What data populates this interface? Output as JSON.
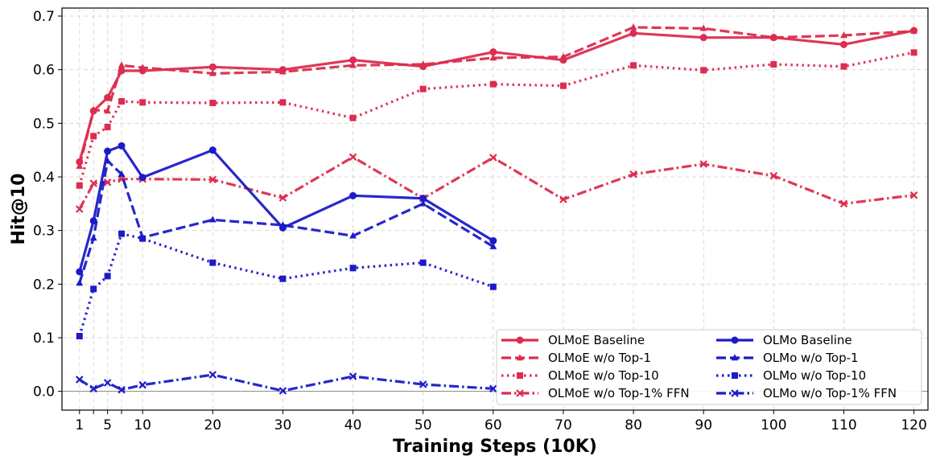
{
  "chart_data": {
    "type": "line",
    "title": "",
    "xlabel": "Training Steps (10K)",
    "ylabel": "Hit@10",
    "xlim": [
      -1.5,
      122
    ],
    "ylim": [
      -0.035,
      0.715
    ],
    "grid": true,
    "legend_position": "lower-right",
    "reference_line": 0.0,
    "xticks": [
      1,
      3,
      5,
      7,
      10,
      20,
      30,
      40,
      50,
      60,
      70,
      80,
      90,
      100,
      110,
      120
    ],
    "xtick_labels": [
      "1",
      "",
      "5",
      "",
      "10",
      "20",
      "30",
      "40",
      "50",
      "60",
      "70",
      "80",
      "90",
      "100",
      "110",
      "120"
    ],
    "yticks": [
      0.0,
      0.1,
      0.2,
      0.3,
      0.4,
      0.5,
      0.6,
      0.7
    ],
    "ytick_labels": [
      "0.0",
      "0.1",
      "0.2",
      "0.3",
      "0.4",
      "0.5",
      "0.6",
      "0.7"
    ],
    "colors": {
      "olmoe": "#dc2c4f",
      "olmo": "#1b1bc8"
    },
    "series": [
      {
        "name": "OLMoE Baseline",
        "color_key": "olmoe",
        "dash": "solid",
        "marker": "circle",
        "x": [
          1,
          3,
          5,
          7,
          10,
          20,
          30,
          40,
          50,
          60,
          70,
          80,
          90,
          100,
          110,
          120
        ],
        "y": [
          0.428,
          0.523,
          0.548,
          0.598,
          0.598,
          0.605,
          0.6,
          0.618,
          0.606,
          0.633,
          0.618,
          0.668,
          0.66,
          0.66,
          0.647,
          0.673
        ]
      },
      {
        "name": "OLMoE w/o Top-1",
        "color_key": "olmoe",
        "dash": "dashed",
        "marker": "triangle",
        "x": [
          1,
          3,
          5,
          7,
          10,
          20,
          30,
          40,
          50,
          60,
          70,
          80,
          90,
          100,
          110,
          120
        ],
        "y": [
          0.42,
          0.525,
          0.523,
          0.608,
          0.604,
          0.593,
          0.596,
          0.608,
          0.61,
          0.622,
          0.624,
          0.679,
          0.677,
          0.66,
          0.664,
          0.672
        ]
      },
      {
        "name": "OLMoE w/o Top-10",
        "color_key": "olmoe",
        "dash": "dotted",
        "marker": "square",
        "x": [
          1,
          3,
          5,
          7,
          10,
          20,
          30,
          40,
          50,
          60,
          70,
          80,
          90,
          100,
          110,
          120
        ],
        "y": [
          0.384,
          0.476,
          0.493,
          0.541,
          0.539,
          0.538,
          0.539,
          0.51,
          0.564,
          0.573,
          0.57,
          0.608,
          0.599,
          0.61,
          0.606,
          0.632
        ]
      },
      {
        "name": "OLMoE w/o Top-1% FFN",
        "color_key": "olmoe",
        "dash": "dashdot",
        "marker": "x",
        "x": [
          1,
          3,
          5,
          7,
          10,
          20,
          30,
          40,
          50,
          60,
          70,
          80,
          90,
          100,
          110,
          120
        ],
        "y": [
          0.34,
          0.388,
          0.39,
          0.396,
          0.396,
          0.395,
          0.361,
          0.437,
          0.36,
          0.436,
          0.358,
          0.405,
          0.424,
          0.402,
          0.35,
          0.366
        ]
      },
      {
        "name": "OLMo Baseline",
        "color_key": "olmo",
        "dash": "solid",
        "marker": "circle",
        "x": [
          1,
          3,
          5,
          7,
          10,
          20,
          30,
          40,
          50,
          60
        ],
        "y": [
          0.223,
          0.318,
          0.448,
          0.458,
          0.399,
          0.45,
          0.305,
          0.365,
          0.36,
          0.281
        ]
      },
      {
        "name": "OLMo w/o Top-1",
        "color_key": "olmo",
        "dash": "dashed",
        "marker": "triangle",
        "x": [
          1,
          3,
          5,
          7,
          10,
          20,
          30,
          40,
          50,
          60
        ],
        "y": [
          0.202,
          0.286,
          0.43,
          0.405,
          0.287,
          0.32,
          0.31,
          0.29,
          0.35,
          0.27
        ]
      },
      {
        "name": "OLMo w/o Top-10",
        "color_key": "olmo",
        "dash": "dotted",
        "marker": "square",
        "x": [
          1,
          3,
          5,
          7,
          10,
          20,
          30,
          40,
          50,
          60
        ],
        "y": [
          0.103,
          0.191,
          0.215,
          0.294,
          0.285,
          0.24,
          0.21,
          0.23,
          0.24,
          0.195
        ]
      },
      {
        "name": "OLMo w/o Top-1% FFN",
        "color_key": "olmo",
        "dash": "dashdot",
        "marker": "x",
        "x": [
          1,
          3,
          5,
          7,
          10,
          20,
          30,
          40,
          50,
          60
        ],
        "y": [
          0.022,
          0.005,
          0.016,
          0.003,
          0.012,
          0.031,
          0.001,
          0.028,
          0.013,
          0.005
        ]
      }
    ]
  }
}
